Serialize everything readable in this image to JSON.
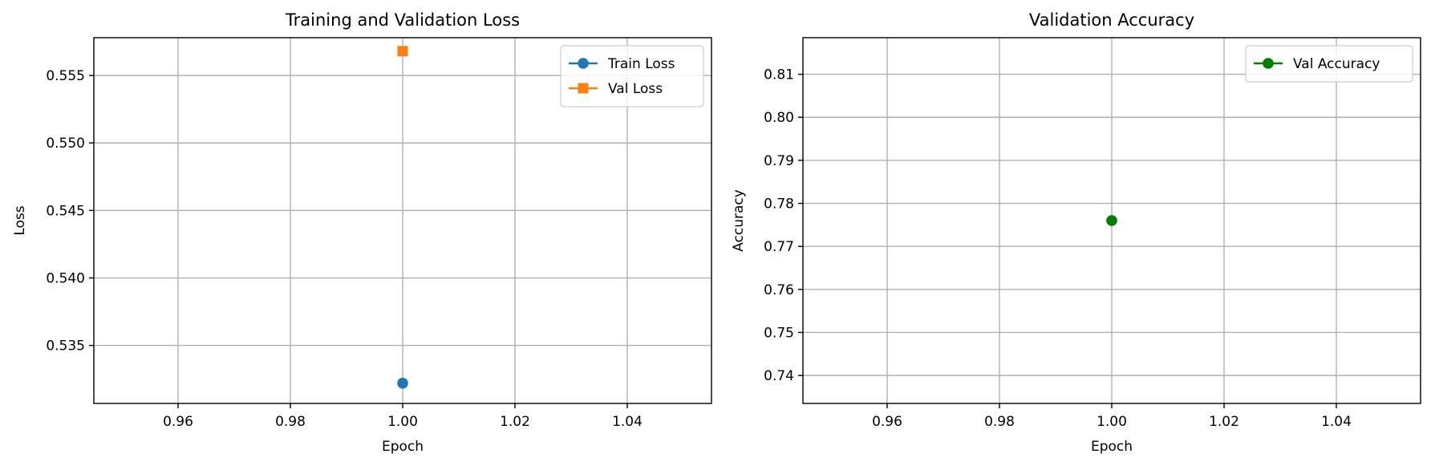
{
  "chart_data": [
    {
      "type": "scatter",
      "title": "Training and Validation Loss",
      "xlabel": "Epoch",
      "ylabel": "Loss",
      "xlim": [
        0.945,
        1.055
      ],
      "ylim": [
        0.5307,
        0.5578
      ],
      "xticks": [
        0.96,
        0.98,
        1.0,
        1.02,
        1.04
      ],
      "xtick_labels": [
        "0.96",
        "0.98",
        "1.00",
        "1.02",
        "1.04"
      ],
      "yticks": [
        0.535,
        0.54,
        0.545,
        0.55,
        0.555
      ],
      "ytick_labels": [
        "0.535",
        "0.540",
        "0.545",
        "0.550",
        "0.555"
      ],
      "grid": true,
      "legend_position": "top-right",
      "series": [
        {
          "name": "Train Loss",
          "marker": "circle",
          "color": "#1f77b4",
          "x": [
            1.0
          ],
          "y": [
            0.5322
          ]
        },
        {
          "name": "Val Loss",
          "marker": "square",
          "color": "#ff7f0e",
          "x": [
            1.0
          ],
          "y": [
            0.5568
          ]
        }
      ]
    },
    {
      "type": "scatter",
      "title": "Validation Accuracy",
      "xlabel": "Epoch",
      "ylabel": "Accuracy",
      "xlim": [
        0.945,
        1.055
      ],
      "ylim": [
        0.7335,
        0.8185
      ],
      "xticks": [
        0.96,
        0.98,
        1.0,
        1.02,
        1.04
      ],
      "xtick_labels": [
        "0.96",
        "0.98",
        "1.00",
        "1.02",
        "1.04"
      ],
      "yticks": [
        0.74,
        0.75,
        0.76,
        0.77,
        0.78,
        0.79,
        0.8,
        0.81
      ],
      "ytick_labels": [
        "0.74",
        "0.75",
        "0.76",
        "0.77",
        "0.78",
        "0.79",
        "0.80",
        "0.81"
      ],
      "grid": true,
      "legend_position": "top-right",
      "series": [
        {
          "name": "Val Accuracy",
          "marker": "circle",
          "color": "#008000",
          "x": [
            1.0
          ],
          "y": [
            0.776
          ]
        }
      ]
    }
  ]
}
